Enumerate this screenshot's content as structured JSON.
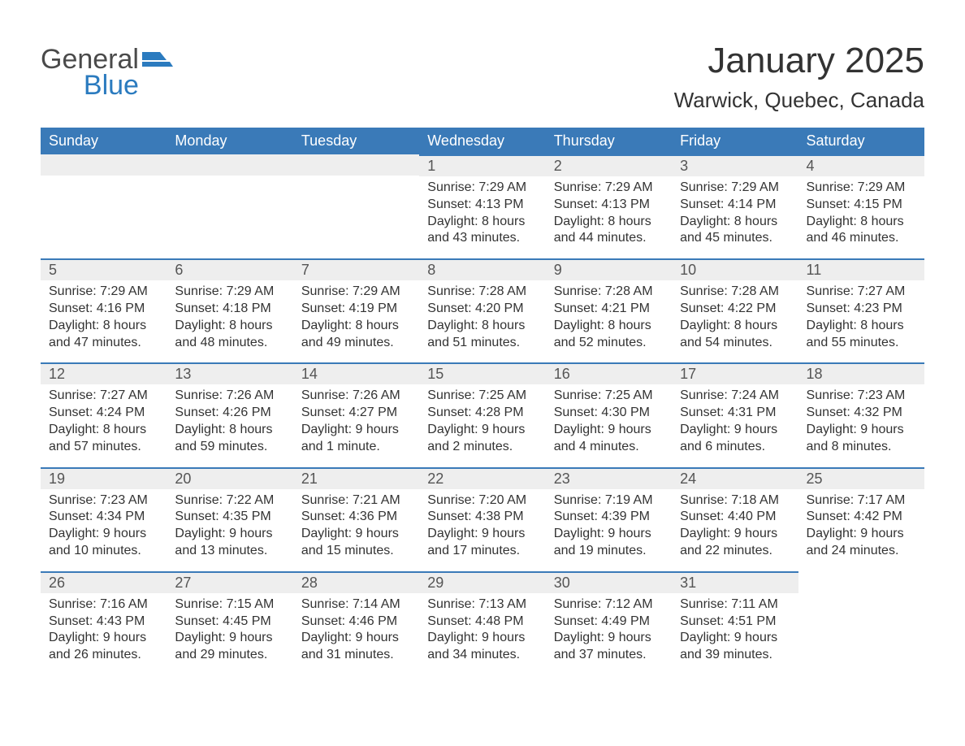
{
  "logo": {
    "general": "General",
    "blue": "Blue"
  },
  "title": "January 2025",
  "location": "Warwick, Quebec, Canada",
  "colors": {
    "header_bg": "#3a7ab8",
    "header_text": "#ffffff",
    "daynum_bg": "#eeeeee",
    "day_border": "#3a7ab8",
    "body_text": "#333333",
    "logo_gray": "#4a4a4a",
    "logo_blue": "#2b7bbf",
    "page_bg": "#ffffff"
  },
  "typography": {
    "month_title_fontsize": 44,
    "location_fontsize": 26,
    "day_header_fontsize": 18,
    "day_num_fontsize": 18,
    "body_fontsize": 16,
    "logo_fontsize": 34
  },
  "layout": {
    "columns": 7,
    "week_rows": 5,
    "first_day_column_index": 3
  },
  "day_headers": [
    "Sunday",
    "Monday",
    "Tuesday",
    "Wednesday",
    "Thursday",
    "Friday",
    "Saturday"
  ],
  "weeks": [
    [
      {
        "blank": true
      },
      {
        "blank": true
      },
      {
        "blank": true
      },
      {
        "day": "1",
        "sunrise": "Sunrise: 7:29 AM",
        "sunset": "Sunset: 4:13 PM",
        "dl1": "Daylight: 8 hours",
        "dl2": "and 43 minutes."
      },
      {
        "day": "2",
        "sunrise": "Sunrise: 7:29 AM",
        "sunset": "Sunset: 4:13 PM",
        "dl1": "Daylight: 8 hours",
        "dl2": "and 44 minutes."
      },
      {
        "day": "3",
        "sunrise": "Sunrise: 7:29 AM",
        "sunset": "Sunset: 4:14 PM",
        "dl1": "Daylight: 8 hours",
        "dl2": "and 45 minutes."
      },
      {
        "day": "4",
        "sunrise": "Sunrise: 7:29 AM",
        "sunset": "Sunset: 4:15 PM",
        "dl1": "Daylight: 8 hours",
        "dl2": "and 46 minutes."
      }
    ],
    [
      {
        "day": "5",
        "sunrise": "Sunrise: 7:29 AM",
        "sunset": "Sunset: 4:16 PM",
        "dl1": "Daylight: 8 hours",
        "dl2": "and 47 minutes."
      },
      {
        "day": "6",
        "sunrise": "Sunrise: 7:29 AM",
        "sunset": "Sunset: 4:18 PM",
        "dl1": "Daylight: 8 hours",
        "dl2": "and 48 minutes."
      },
      {
        "day": "7",
        "sunrise": "Sunrise: 7:29 AM",
        "sunset": "Sunset: 4:19 PM",
        "dl1": "Daylight: 8 hours",
        "dl2": "and 49 minutes."
      },
      {
        "day": "8",
        "sunrise": "Sunrise: 7:28 AM",
        "sunset": "Sunset: 4:20 PM",
        "dl1": "Daylight: 8 hours",
        "dl2": "and 51 minutes."
      },
      {
        "day": "9",
        "sunrise": "Sunrise: 7:28 AM",
        "sunset": "Sunset: 4:21 PM",
        "dl1": "Daylight: 8 hours",
        "dl2": "and 52 minutes."
      },
      {
        "day": "10",
        "sunrise": "Sunrise: 7:28 AM",
        "sunset": "Sunset: 4:22 PM",
        "dl1": "Daylight: 8 hours",
        "dl2": "and 54 minutes."
      },
      {
        "day": "11",
        "sunrise": "Sunrise: 7:27 AM",
        "sunset": "Sunset: 4:23 PM",
        "dl1": "Daylight: 8 hours",
        "dl2": "and 55 minutes."
      }
    ],
    [
      {
        "day": "12",
        "sunrise": "Sunrise: 7:27 AM",
        "sunset": "Sunset: 4:24 PM",
        "dl1": "Daylight: 8 hours",
        "dl2": "and 57 minutes."
      },
      {
        "day": "13",
        "sunrise": "Sunrise: 7:26 AM",
        "sunset": "Sunset: 4:26 PM",
        "dl1": "Daylight: 8 hours",
        "dl2": "and 59 minutes."
      },
      {
        "day": "14",
        "sunrise": "Sunrise: 7:26 AM",
        "sunset": "Sunset: 4:27 PM",
        "dl1": "Daylight: 9 hours",
        "dl2": "and 1 minute."
      },
      {
        "day": "15",
        "sunrise": "Sunrise: 7:25 AM",
        "sunset": "Sunset: 4:28 PM",
        "dl1": "Daylight: 9 hours",
        "dl2": "and 2 minutes."
      },
      {
        "day": "16",
        "sunrise": "Sunrise: 7:25 AM",
        "sunset": "Sunset: 4:30 PM",
        "dl1": "Daylight: 9 hours",
        "dl2": "and 4 minutes."
      },
      {
        "day": "17",
        "sunrise": "Sunrise: 7:24 AM",
        "sunset": "Sunset: 4:31 PM",
        "dl1": "Daylight: 9 hours",
        "dl2": "and 6 minutes."
      },
      {
        "day": "18",
        "sunrise": "Sunrise: 7:23 AM",
        "sunset": "Sunset: 4:32 PM",
        "dl1": "Daylight: 9 hours",
        "dl2": "and 8 minutes."
      }
    ],
    [
      {
        "day": "19",
        "sunrise": "Sunrise: 7:23 AM",
        "sunset": "Sunset: 4:34 PM",
        "dl1": "Daylight: 9 hours",
        "dl2": "and 10 minutes."
      },
      {
        "day": "20",
        "sunrise": "Sunrise: 7:22 AM",
        "sunset": "Sunset: 4:35 PM",
        "dl1": "Daylight: 9 hours",
        "dl2": "and 13 minutes."
      },
      {
        "day": "21",
        "sunrise": "Sunrise: 7:21 AM",
        "sunset": "Sunset: 4:36 PM",
        "dl1": "Daylight: 9 hours",
        "dl2": "and 15 minutes."
      },
      {
        "day": "22",
        "sunrise": "Sunrise: 7:20 AM",
        "sunset": "Sunset: 4:38 PM",
        "dl1": "Daylight: 9 hours",
        "dl2": "and 17 minutes."
      },
      {
        "day": "23",
        "sunrise": "Sunrise: 7:19 AM",
        "sunset": "Sunset: 4:39 PM",
        "dl1": "Daylight: 9 hours",
        "dl2": "and 19 minutes."
      },
      {
        "day": "24",
        "sunrise": "Sunrise: 7:18 AM",
        "sunset": "Sunset: 4:40 PM",
        "dl1": "Daylight: 9 hours",
        "dl2": "and 22 minutes."
      },
      {
        "day": "25",
        "sunrise": "Sunrise: 7:17 AM",
        "sunset": "Sunset: 4:42 PM",
        "dl1": "Daylight: 9 hours",
        "dl2": "and 24 minutes."
      }
    ],
    [
      {
        "day": "26",
        "sunrise": "Sunrise: 7:16 AM",
        "sunset": "Sunset: 4:43 PM",
        "dl1": "Daylight: 9 hours",
        "dl2": "and 26 minutes."
      },
      {
        "day": "27",
        "sunrise": "Sunrise: 7:15 AM",
        "sunset": "Sunset: 4:45 PM",
        "dl1": "Daylight: 9 hours",
        "dl2": "and 29 minutes."
      },
      {
        "day": "28",
        "sunrise": "Sunrise: 7:14 AM",
        "sunset": "Sunset: 4:46 PM",
        "dl1": "Daylight: 9 hours",
        "dl2": "and 31 minutes."
      },
      {
        "day": "29",
        "sunrise": "Sunrise: 7:13 AM",
        "sunset": "Sunset: 4:48 PM",
        "dl1": "Daylight: 9 hours",
        "dl2": "and 34 minutes."
      },
      {
        "day": "30",
        "sunrise": "Sunrise: 7:12 AM",
        "sunset": "Sunset: 4:49 PM",
        "dl1": "Daylight: 9 hours",
        "dl2": "and 37 minutes."
      },
      {
        "day": "31",
        "sunrise": "Sunrise: 7:11 AM",
        "sunset": "Sunset: 4:51 PM",
        "dl1": "Daylight: 9 hours",
        "dl2": "and 39 minutes."
      },
      {
        "blank": true
      }
    ]
  ]
}
